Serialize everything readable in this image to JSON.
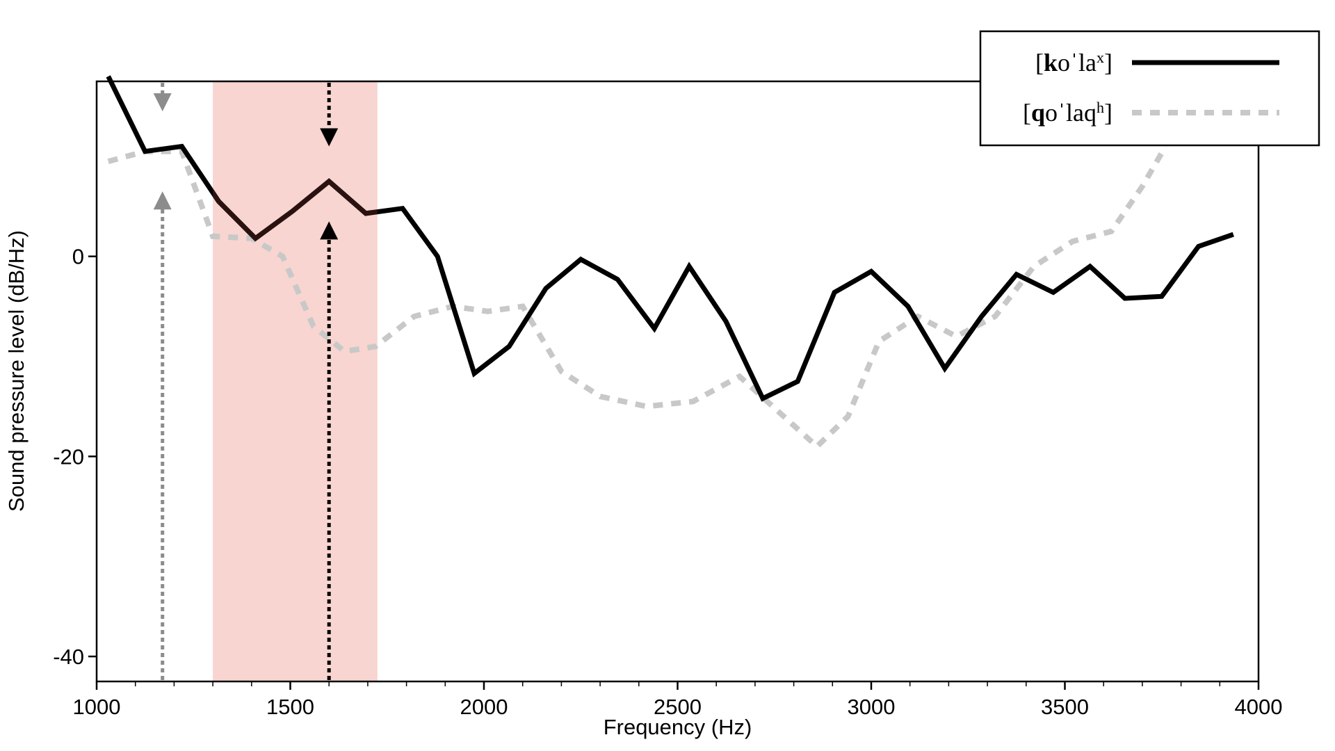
{
  "chart_data": {
    "type": "line",
    "xlabel": "Frequency (Hz)",
    "ylabel": "Sound pressure level (dB/Hz)",
    "xlim": [
      1000,
      4000
    ],
    "ylim": [
      -42.5,
      17.5
    ],
    "x_ticks": [
      1000,
      1500,
      2000,
      2500,
      3000,
      3500,
      4000
    ],
    "x_tick_labels": [
      "1000",
      "1500",
      "2000",
      "2500",
      "3000",
      "3500",
      "4000"
    ],
    "y_ticks": [
      0,
      -20,
      -40
    ],
    "y_tick_labels": [
      "0",
      "-20",
      "-40"
    ],
    "grid": false,
    "legend_position": "top-right",
    "highlight_band": {
      "x_start": 1300,
      "x_end": 1725,
      "color": "#f8d5d0"
    },
    "arrows": [
      {
        "x": 1170,
        "color": "#8c8c8c",
        "top_value": 14.5,
        "bottom_value": 6.5
      },
      {
        "x": 1600,
        "color": "#000000",
        "top_value": 11.0,
        "bottom_value": 3.5
      }
    ],
    "series": [
      {
        "name": "[koˈlaˣ]",
        "name_parts": [
          {
            "text": "[",
            "bold": false
          },
          {
            "text": "k",
            "bold": true
          },
          {
            "text": "oˈla",
            "bold": false
          },
          {
            "text": "x",
            "bold": false,
            "sup": true
          },
          {
            "text": "]",
            "bold": false
          }
        ],
        "color": "#000000",
        "style": "solid",
        "x": [
          1030,
          1125,
          1220,
          1315,
          1410,
          1505,
          1600,
          1695,
          1790,
          1880,
          1975,
          2065,
          2160,
          2250,
          2345,
          2440,
          2530,
          2625,
          2720,
          2810,
          2905,
          3000,
          3095,
          3190,
          3285,
          3375,
          3470,
          3565,
          3655,
          3750,
          3845,
          3935
        ],
        "y": [
          18.0,
          10.5,
          11.0,
          5.5,
          1.8,
          4.5,
          7.5,
          4.3,
          4.8,
          0.0,
          -11.7,
          -9.0,
          -3.2,
          -0.3,
          -2.3,
          -7.2,
          -1.0,
          -6.5,
          -14.2,
          -12.5,
          -3.6,
          -1.5,
          -5.0,
          -11.2,
          -6.0,
          -1.8,
          -3.6,
          -1.0,
          -4.2,
          -4.0,
          1.0,
          2.2
        ]
      },
      {
        "name": "[qoˈlaqʰ]",
        "name_parts": [
          {
            "text": "[",
            "bold": false
          },
          {
            "text": "q",
            "bold": true
          },
          {
            "text": "oˈlaq",
            "bold": false
          },
          {
            "text": "h",
            "bold": false,
            "sup": true
          },
          {
            "text": "]",
            "bold": false
          }
        ],
        "color": "#c8c8c8",
        "style": "dashed",
        "x": [
          1030,
          1125,
          1220,
          1300,
          1400,
          1480,
          1560,
          1640,
          1720,
          1820,
          1920,
          2010,
          2100,
          2200,
          2300,
          2420,
          2540,
          2660,
          2760,
          2860,
          2940,
          3020,
          3120,
          3220,
          3320,
          3420,
          3520,
          3620,
          3700,
          3760
        ],
        "y": [
          9.5,
          10.5,
          10.5,
          2.0,
          1.8,
          0.0,
          -7.0,
          -9.5,
          -9.0,
          -6.0,
          -5.0,
          -5.5,
          -5.0,
          -11.5,
          -14.0,
          -15.0,
          -14.5,
          -12.0,
          -15.5,
          -19.0,
          -16.0,
          -8.5,
          -6.0,
          -8.0,
          -6.0,
          -1.0,
          1.5,
          2.5,
          7.0,
          11.0
        ]
      }
    ]
  }
}
